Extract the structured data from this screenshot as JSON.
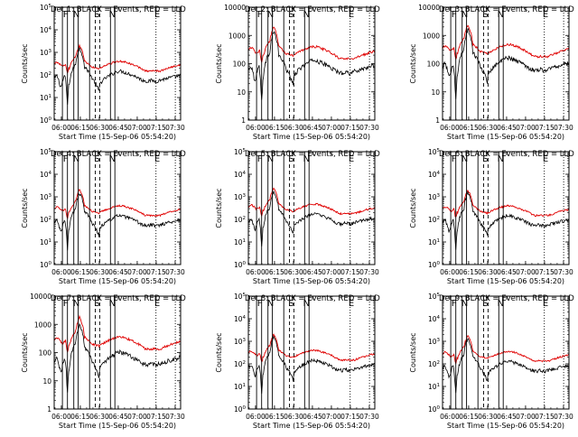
{
  "figure": {
    "ylabel": "Counts/sec",
    "xlabel": "Start Time (15-Sep-06 05:54:20)",
    "x_ticks": [
      "06:00",
      "06:15",
      "06:30",
      "06:45",
      "07:00",
      "07:15",
      "07:30"
    ],
    "colors": {
      "events": "#000000",
      "lld": "#e00000",
      "axes": "#000000"
    },
    "region_labels": [
      "F",
      "N",
      "S",
      "N",
      "E"
    ],
    "legend_text": "BLACK = Events, RED = LLD"
  },
  "chart_data": [
    {
      "type": "line",
      "title": "Det 1: BLACK = Events, RED = LLD",
      "yscale": "log",
      "ylim": [
        1,
        100000
      ],
      "ytick_style": "exp",
      "event_scale": 1.0,
      "lld_scale": 1.0,
      "series": [
        {
          "name": "Events",
          "color": "#000000"
        },
        {
          "name": "LLD",
          "color": "#e00000"
        }
      ]
    },
    {
      "type": "line",
      "title": "Det 2: BLACK = Events, RED = LLD",
      "yscale": "log",
      "ylim": [
        1,
        10000
      ],
      "ytick_style": "plain",
      "event_scale": 0.9,
      "lld_scale": 1.0,
      "series": [
        {
          "name": "Events",
          "color": "#000000"
        },
        {
          "name": "LLD",
          "color": "#e00000"
        }
      ]
    },
    {
      "type": "line",
      "title": "Det 3: BLACK = Events, RED = LLD",
      "yscale": "log",
      "ylim": [
        1,
        10000
      ],
      "ytick_style": "plain",
      "event_scale": 1.1,
      "lld_scale": 1.2,
      "series": [
        {
          "name": "Events",
          "color": "#000000"
        },
        {
          "name": "LLD",
          "color": "#e00000"
        }
      ]
    },
    {
      "type": "line",
      "title": "Det 4: BLACK = Events, RED = LLD",
      "yscale": "log",
      "ylim": [
        1,
        100000
      ],
      "ytick_style": "exp",
      "event_scale": 1.0,
      "lld_scale": 1.0,
      "series": [
        {
          "name": "Events",
          "color": "#000000"
        },
        {
          "name": "LLD",
          "color": "#e00000"
        }
      ]
    },
    {
      "type": "line",
      "title": "Det 5: BLACK = Events, RED = LLD",
      "yscale": "log",
      "ylim": [
        1,
        100000
      ],
      "ytick_style": "exp",
      "event_scale": 1.2,
      "lld_scale": 1.2,
      "series": [
        {
          "name": "Events",
          "color": "#000000"
        },
        {
          "name": "LLD",
          "color": "#e00000"
        }
      ]
    },
    {
      "type": "line",
      "title": "Det 6: BLACK = Events, RED = LLD",
      "yscale": "log",
      "ylim": [
        1,
        100000
      ],
      "ytick_style": "exp",
      "event_scale": 1.0,
      "lld_scale": 1.0,
      "series": [
        {
          "name": "Events",
          "color": "#000000"
        },
        {
          "name": "LLD",
          "color": "#e00000"
        }
      ]
    },
    {
      "type": "line",
      "title": "Det 7: BLACK = Events, RED = LLD",
      "yscale": "log",
      "ylim": [
        1,
        10000
      ],
      "ytick_style": "plain",
      "event_scale": 0.7,
      "lld_scale": 0.9,
      "series": [
        {
          "name": "Events",
          "color": "#000000"
        },
        {
          "name": "LLD",
          "color": "#e00000"
        }
      ]
    },
    {
      "type": "line",
      "title": "Det 8: BLACK = Events, RED = LLD",
      "yscale": "log",
      "ylim": [
        1,
        100000
      ],
      "ytick_style": "exp",
      "event_scale": 1.0,
      "lld_scale": 1.0,
      "series": [
        {
          "name": "Events",
          "color": "#000000"
        },
        {
          "name": "LLD",
          "color": "#e00000"
        }
      ]
    },
    {
      "type": "line",
      "title": "Det 9: BLACK = Events, RED = LLD",
      "yscale": "log",
      "ylim": [
        1,
        100000
      ],
      "ytick_style": "exp",
      "event_scale": 0.9,
      "lld_scale": 0.9,
      "series": [
        {
          "name": "Events",
          "color": "#000000"
        },
        {
          "name": "LLD",
          "color": "#e00000"
        }
      ]
    }
  ]
}
